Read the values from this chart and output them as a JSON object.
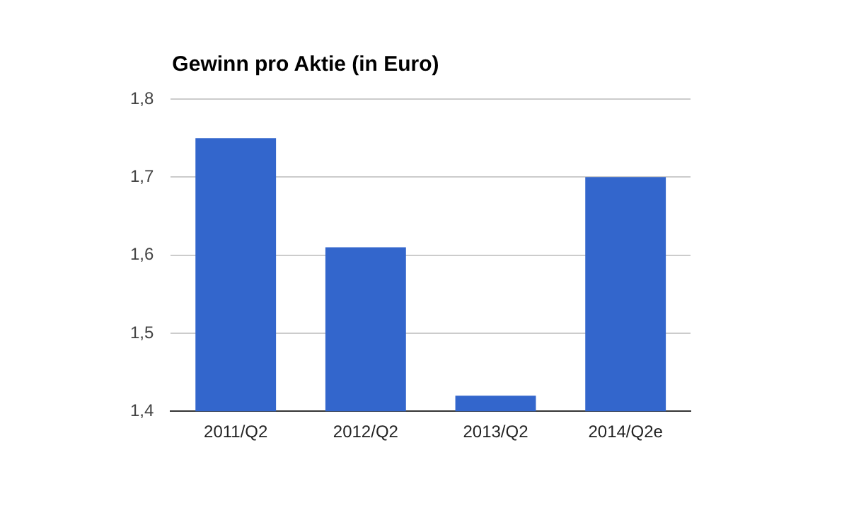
{
  "chart_data": {
    "type": "bar",
    "title": "Gewinn pro Aktie (in Euro)",
    "categories": [
      "2011/Q2",
      "2012/Q2",
      "2013/Q2",
      "2014/Q2e"
    ],
    "values": [
      1.75,
      1.61,
      1.42,
      1.7
    ],
    "color": "#3366cc",
    "ylim": [
      1.4,
      1.8
    ],
    "yticks": [
      {
        "value": 1.4,
        "label": "1,4"
      },
      {
        "value": 1.5,
        "label": "1,5"
      },
      {
        "value": 1.6,
        "label": "1,6"
      },
      {
        "value": 1.7,
        "label": "1,7"
      },
      {
        "value": 1.8,
        "label": "1,8"
      }
    ],
    "grid": "y"
  }
}
